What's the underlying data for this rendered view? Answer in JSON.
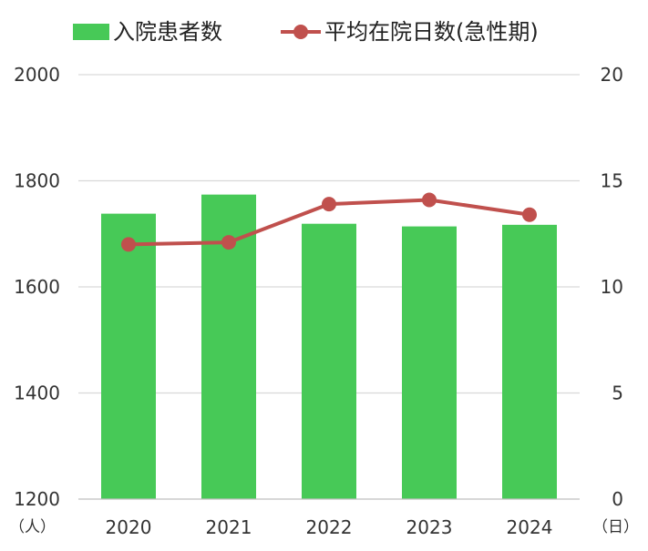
{
  "chart_data": {
    "type": "bar+line",
    "categories": [
      "2020",
      "2021",
      "2022",
      "2023",
      "2024"
    ],
    "series": [
      {
        "name": "入院患者数",
        "type": "bar",
        "axis": "left",
        "color": "#47c957",
        "values": [
          1738,
          1774,
          1719,
          1714,
          1717
        ]
      },
      {
        "name": "平均在院日数(急性期)",
        "type": "line",
        "axis": "right",
        "color": "#c0504d",
        "values": [
          12.0,
          12.1,
          13.9,
          14.1,
          13.4
        ]
      }
    ],
    "left_axis": {
      "min": 1200,
      "max": 2000,
      "ticks": [
        1200,
        1400,
        1600,
        1800,
        2000
      ],
      "unit_label": "（人）"
    },
    "right_axis": {
      "min": 0,
      "max": 20,
      "ticks": [
        0,
        5,
        10,
        15,
        20
      ],
      "unit_label": "（日）"
    },
    "grid": true,
    "legend_position": "top"
  }
}
